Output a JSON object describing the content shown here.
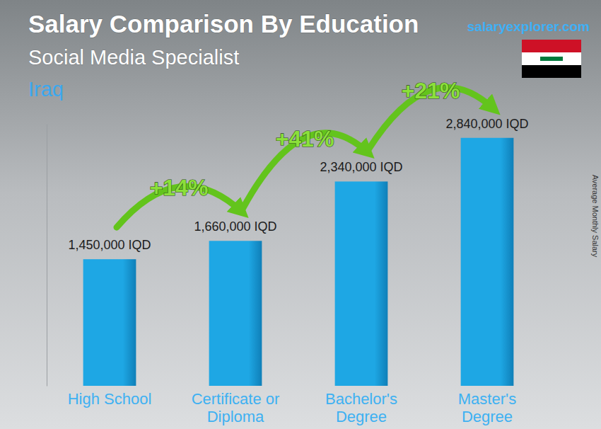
{
  "chart_data": {
    "type": "bar",
    "title": "Salary Comparison By Education",
    "subtitle": "Social Media Specialist",
    "country": "Iraq",
    "source": "salaryexplorer.com",
    "y_label": "Average Monthly Salary",
    "categories": [
      "High School",
      "Certificate or Diploma",
      "Bachelor's Degree",
      "Master's Degree"
    ],
    "values": [
      1450000,
      1660000,
      2340000,
      2840000
    ],
    "value_labels": [
      "1,450,000 IQD",
      "1,660,000 IQD",
      "2,340,000 IQD",
      "2,840,000 IQD"
    ],
    "data_labels": true,
    "annotations": [
      "+14%",
      "+41%",
      "+21%"
    ],
    "color": "#1ea7e4",
    "ylim": [
      0,
      3000000
    ],
    "tick_labels": "x",
    "grid": false
  }
}
